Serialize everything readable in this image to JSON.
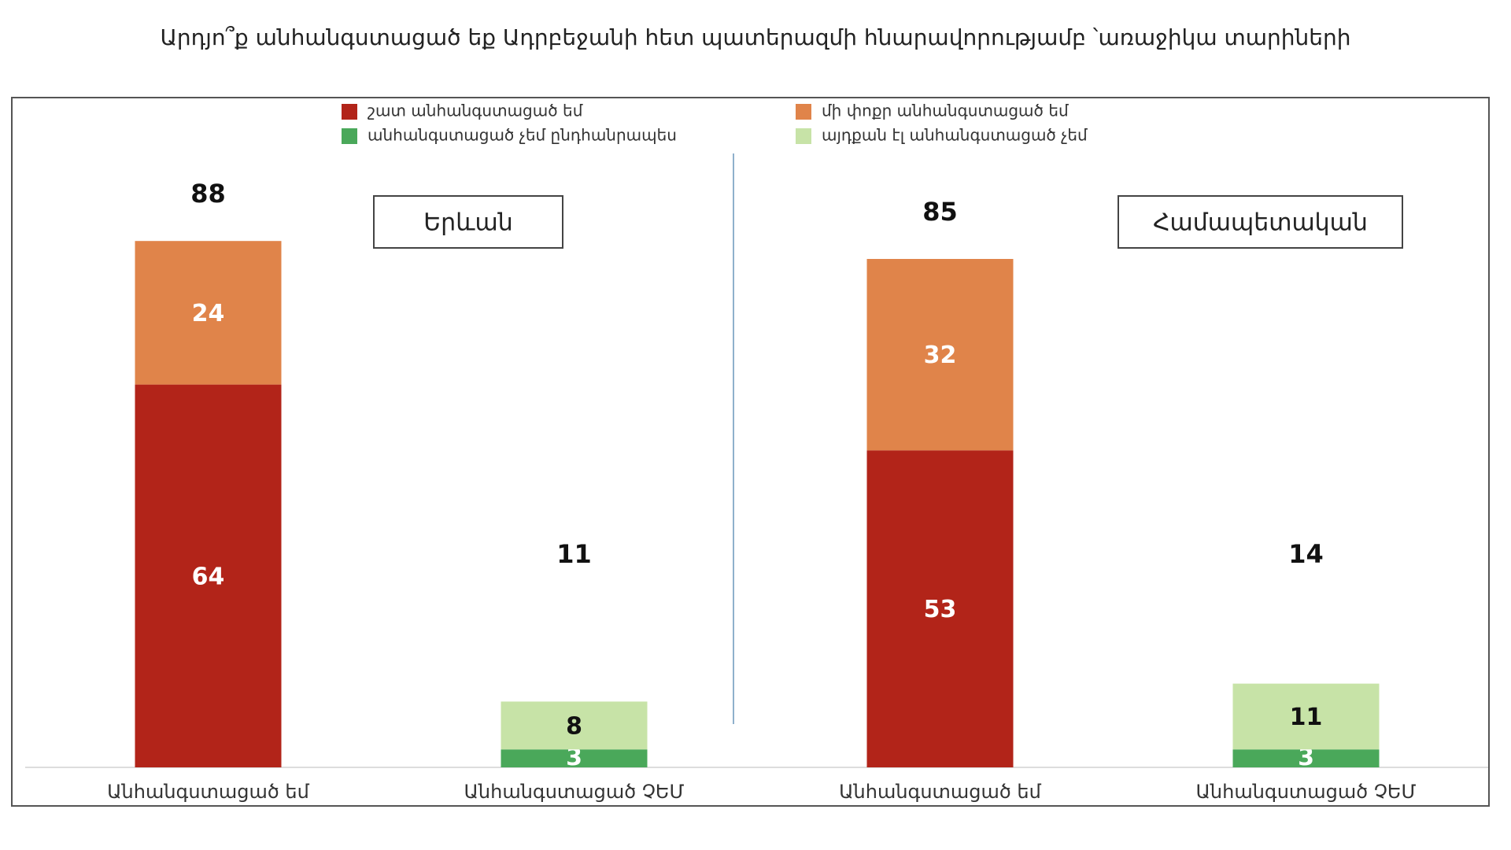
{
  "title": "Արդյո՞ք անհանգստացած եք Ադրբեջանի հետ պատերազմի հնարավորությամբ ՝առաջիկա տարիների",
  "chart_data": [
    {
      "type": "bar",
      "stacked": true,
      "panel_label": "Երևան",
      "categories": [
        "Անհանգստացած եմ",
        "Անհանգստացած ՉԵՄ"
      ],
      "ylim": [
        0,
        100
      ],
      "series": [
        {
          "name": "շատ անհանգստացած եմ",
          "color": "#b22419",
          "values": [
            64,
            null
          ]
        },
        {
          "name": "մի փոքր անհանգստացած եմ",
          "color": "#e0844a",
          "values": [
            24,
            null
          ]
        },
        {
          "name": "անհանգստացած չեմ ընդհանրապես",
          "color": "#4aa85a",
          "values": [
            null,
            3
          ]
        },
        {
          "name": "այդքան էլ անհանգստացած չեմ",
          "color": "#c7e3a7",
          "values": [
            null,
            8
          ]
        }
      ],
      "totals": [
        88,
        11
      ]
    },
    {
      "type": "bar",
      "stacked": true,
      "panel_label": "Համապետական",
      "categories": [
        "Անհանգստացած եմ",
        "Անհանգստացած ՉԵՄ"
      ],
      "ylim": [
        0,
        100
      ],
      "series": [
        {
          "color": "#b22419",
          "values": [
            53,
            null
          ]
        },
        {
          "color": "#e0844a",
          "values": [
            32,
            null
          ]
        },
        {
          "color": "#4aa85a",
          "values": [
            null,
            3
          ]
        },
        {
          "color": "#c7e3a7",
          "values": [
            null,
            11
          ]
        }
      ],
      "totals": [
        85,
        14
      ]
    }
  ]
}
